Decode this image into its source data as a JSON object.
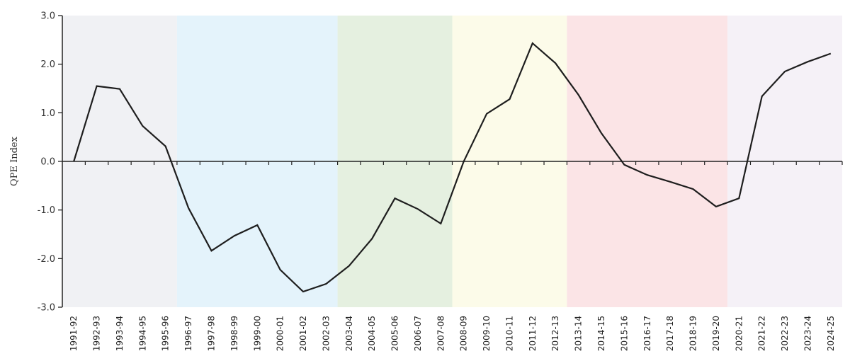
{
  "chart_data": {
    "type": "line",
    "title": "",
    "xlabel": "",
    "ylabel": "QPE Index",
    "ylim": [
      -3.0,
      3.0
    ],
    "yticks": [
      "3.0",
      "2.0",
      "1.0",
      "0.0",
      "-1.0",
      "-2.0",
      "-3.0"
    ],
    "ytick_values": [
      3,
      2,
      1,
      0,
      -1,
      -2,
      -3
    ],
    "grid": false,
    "legend": null,
    "categories": [
      "1991-92",
      "1992-93",
      "1993-94",
      "1994-95",
      "1995-96",
      "1996-97",
      "1997-98",
      "1998-99",
      "1999-00",
      "2000-01",
      "2001-02",
      "2002-03",
      "2003-04",
      "2004-05",
      "2005-06",
      "2006-07",
      "2007-08",
      "2008-09",
      "2009-10",
      "2010-11",
      "2011-12",
      "2012-13",
      "2013-14",
      "2014-15",
      "2015-16",
      "2016-17",
      "2017-18",
      "2018-19",
      "2019-20",
      "2020-21",
      "2021-22",
      "2022-23",
      "2023-24",
      "2024-25"
    ],
    "series": [
      {
        "name": "QPE Index",
        "color": "#1e1e1e",
        "values": [
          0.0,
          1.55,
          1.49,
          0.73,
          0.31,
          -0.96,
          -1.84,
          -1.53,
          -1.31,
          -2.23,
          -2.68,
          -2.52,
          -2.15,
          -1.59,
          -0.76,
          -0.98,
          -1.28,
          0.0,
          0.98,
          1.28,
          2.43,
          2.02,
          1.37,
          0.58,
          -0.07,
          -0.28,
          -0.42,
          -0.57,
          -0.93,
          -0.76,
          1.34,
          1.85,
          2.05,
          2.22
        ]
      }
    ],
    "bands": [
      {
        "start": 0,
        "end": 4,
        "color": "#f0f1f4"
      },
      {
        "start": 5,
        "end": 11,
        "color": "#e4f3fb"
      },
      {
        "start": 12,
        "end": 16,
        "color": "#e5f0e0"
      },
      {
        "start": 17,
        "end": 21,
        "color": "#fcfbe9"
      },
      {
        "start": 22,
        "end": 28,
        "color": "#fbe4e6"
      },
      {
        "start": 29,
        "end": 33,
        "color": "#f5f1f7"
      }
    ]
  }
}
